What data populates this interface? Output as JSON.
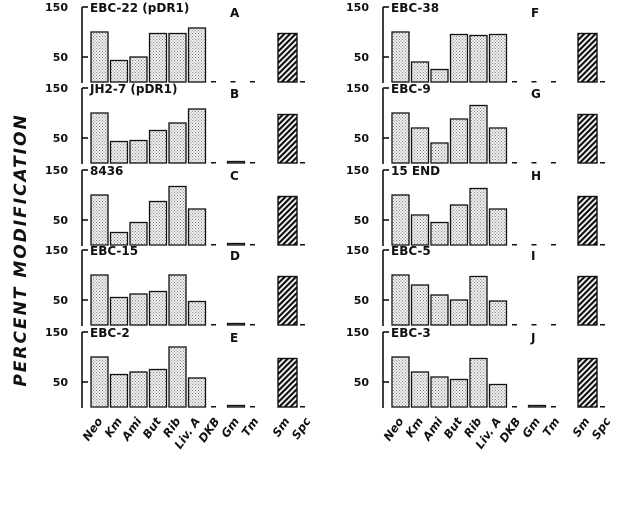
{
  "figure": {
    "ylabel": "PERCENT MODIFICATION",
    "ytick_labels": [
      "150",
      "50"
    ],
    "xtick_labels": [
      "Neo",
      "Km",
      "Ami",
      "But",
      "Rib",
      "Liv. A",
      "DKB",
      "Gm",
      "Tm"
    ],
    "control_tick_labels": [
      "Sm",
      "Spc"
    ],
    "colors": {
      "ink": "#111111",
      "bar_fill": "#e4e4e4",
      "control_fill": "#2a2a2a"
    }
  },
  "chart_data": [
    {
      "type": "bar",
      "letter": "A",
      "strain": "EBC-22 (pDR1)",
      "categories": [
        "Neo",
        "Km",
        "Ami",
        "But",
        "Rib",
        "Liv. A",
        "DKB",
        "Gm",
        "Tm"
      ],
      "values": [
        100,
        43,
        50,
        97,
        97,
        108,
        0,
        0,
        0
      ],
      "control": {
        "label": "Sm",
        "value": 97
      },
      "ylim": [
        0,
        150
      ]
    },
    {
      "type": "bar",
      "letter": "B",
      "strain": "JH2-7 (pDR1)",
      "categories": [
        "Neo",
        "Km",
        "Ami",
        "But",
        "Rib",
        "Liv. A",
        "DKB",
        "Gm",
        "Tm"
      ],
      "values": [
        100,
        43,
        45,
        65,
        80,
        108,
        0,
        3,
        0
      ],
      "control": {
        "label": "Sm",
        "value": 97
      },
      "ylim": [
        0,
        150
      ]
    },
    {
      "type": "bar",
      "letter": "C",
      "strain": "8436",
      "categories": [
        "Neo",
        "Km",
        "Ami",
        "But",
        "Rib",
        "Liv. A",
        "DKB",
        "Gm",
        "Tm"
      ],
      "values": [
        100,
        25,
        45,
        87,
        117,
        72,
        0,
        3,
        0
      ],
      "control": {
        "label": "Sm",
        "value": 97
      },
      "ylim": [
        0,
        150
      ]
    },
    {
      "type": "bar",
      "letter": "D",
      "strain": "EBC-15",
      "categories": [
        "Neo",
        "Km",
        "Ami",
        "But",
        "Rib",
        "Liv. A",
        "DKB",
        "Gm",
        "Tm"
      ],
      "values": [
        100,
        55,
        62,
        67,
        100,
        47,
        0,
        3,
        0
      ],
      "control": {
        "label": "Sm",
        "value": 97
      },
      "ylim": [
        0,
        150
      ]
    },
    {
      "type": "bar",
      "letter": "E",
      "strain": "EBC-2",
      "categories": [
        "Neo",
        "Km",
        "Ami",
        "But",
        "Rib",
        "Liv. A",
        "DKB",
        "Gm",
        "Tm"
      ],
      "values": [
        100,
        65,
        70,
        75,
        120,
        58,
        0,
        3,
        0
      ],
      "control": {
        "label": "Sm",
        "value": 97
      },
      "ylim": [
        0,
        150
      ]
    },
    {
      "type": "bar",
      "letter": "F",
      "strain": "EBC-38",
      "categories": [
        "Neo",
        "Km",
        "Ami",
        "But",
        "Rib",
        "Liv. A",
        "DKB",
        "Gm",
        "Tm"
      ],
      "values": [
        100,
        40,
        25,
        95,
        93,
        95,
        0,
        0,
        0
      ],
      "control": {
        "label": "Sm",
        "value": 97
      },
      "ylim": [
        0,
        150
      ]
    },
    {
      "type": "bar",
      "letter": "G",
      "strain": "EBC-9",
      "categories": [
        "Neo",
        "Km",
        "Ami",
        "But",
        "Rib",
        "Liv. A",
        "DKB",
        "Gm",
        "Tm"
      ],
      "values": [
        100,
        70,
        40,
        88,
        115,
        70,
        0,
        0,
        0
      ],
      "control": {
        "label": "Sm",
        "value": 97
      },
      "ylim": [
        0,
        150
      ]
    },
    {
      "type": "bar",
      "letter": "H",
      "strain": "15 END",
      "categories": [
        "Neo",
        "Km",
        "Ami",
        "But",
        "Rib",
        "Liv. A",
        "DKB",
        "Gm",
        "Tm"
      ],
      "values": [
        100,
        60,
        45,
        80,
        113,
        72,
        0,
        0,
        0
      ],
      "control": {
        "label": "Sm",
        "value": 97
      },
      "ylim": [
        0,
        150
      ]
    },
    {
      "type": "bar",
      "letter": "I",
      "strain": "EBC-5",
      "categories": [
        "Neo",
        "Km",
        "Ami",
        "But",
        "Rib",
        "Liv. A",
        "DKB",
        "Gm",
        "Tm"
      ],
      "values": [
        100,
        80,
        60,
        50,
        97,
        48,
        0,
        0,
        0
      ],
      "control": {
        "label": "Sm",
        "value": 97
      },
      "ylim": [
        0,
        150
      ]
    },
    {
      "type": "bar",
      "letter": "J",
      "strain": "EBC-3",
      "categories": [
        "Neo",
        "Km",
        "Ami",
        "But",
        "Rib",
        "Liv. A",
        "DKB",
        "Gm",
        "Tm"
      ],
      "values": [
        100,
        70,
        60,
        55,
        97,
        45,
        0,
        3,
        0
      ],
      "control": {
        "label": "Sm",
        "value": 97
      },
      "ylim": [
        0,
        150
      ]
    }
  ]
}
